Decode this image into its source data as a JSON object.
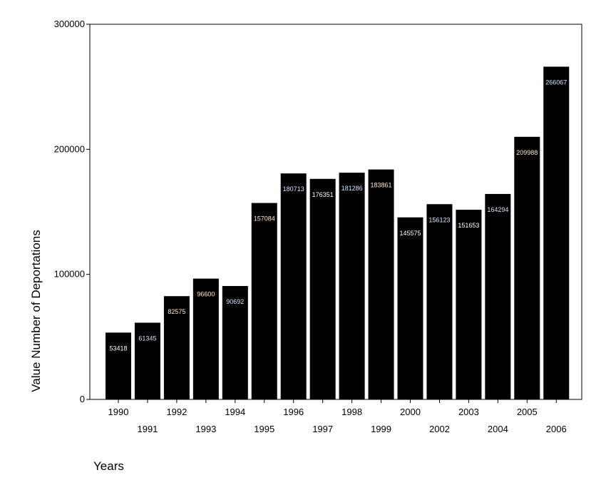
{
  "chart_data": {
    "type": "bar",
    "title": "",
    "xlabel": "Years",
    "ylabel": "Value Number of Deportations",
    "ylim": [
      0,
      300000
    ],
    "yticks": [
      0,
      100000,
      200000,
      300000
    ],
    "ytick_labels": [
      "0",
      "100000",
      "200000",
      "300000"
    ],
    "grid": false,
    "categories": [
      "1990",
      "1991",
      "1992",
      "1993",
      "1994",
      "1995",
      "1996",
      "1997",
      "1998",
      "1999",
      "2000",
      "2002",
      "2003",
      "2004",
      "2005",
      "2006"
    ],
    "values": [
      53418,
      61345,
      82575,
      96600,
      90692,
      157084,
      180713,
      176351,
      181286,
      183861,
      145575,
      156123,
      151653,
      164294,
      209988,
      266067
    ],
    "data_labels": [
      "53418",
      "61345",
      "82575",
      "96600",
      "90692",
      "157084",
      "180713",
      "176351",
      "181286",
      "183861",
      "145575",
      "156123",
      "151653",
      "164294",
      "209988",
      "266067"
    ],
    "bar_color": "#000000",
    "label_colors": [
      "#ffffff",
      "#cfe6ff",
      "#ffe9c7",
      "#ffe9c7",
      "#cfe6ff",
      "#ffe9c7",
      "#cfe6ff",
      "#ffffff",
      "#cfe6ff",
      "#ffe9c7",
      "#ffffff",
      "#cfe6ff",
      "#ffffff",
      "#cfe6ff",
      "#ffe9c7",
      "#cfe6ff"
    ]
  }
}
